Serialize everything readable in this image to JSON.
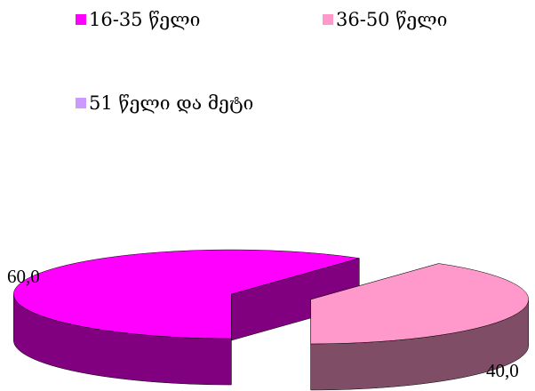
{
  "chart_data": {
    "type": "pie",
    "series": [
      {
        "name": "16-35 წელი",
        "value": 60.0,
        "label": "60,0",
        "color": "#FF00FF",
        "side_color": "#800080"
      },
      {
        "name": "36-50 წელი",
        "value": 40.0,
        "label": "40,0",
        "color": "#FF99CC",
        "side_color": "#804D66"
      },
      {
        "name": "51 წელი და მეტი",
        "value": 0.0,
        "label": "",
        "color": "#CC99FF",
        "side_color": "#664D80"
      }
    ],
    "legend_position": "top",
    "exploded": true,
    "three_d": true
  }
}
